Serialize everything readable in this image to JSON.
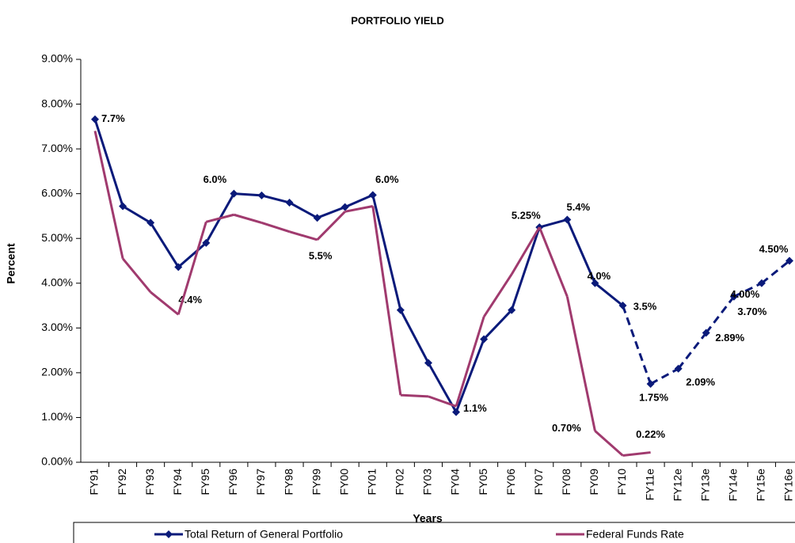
{
  "chart_data": {
    "type": "line",
    "title": "PORTFOLIO YIELD",
    "x_label": "Years",
    "y_label": "Percent",
    "categories": [
      "FY91",
      "FY92",
      "FY93",
      "FY94",
      "FY95",
      "FY96",
      "FY97",
      "FY98",
      "FY99",
      "FY00",
      "FY01",
      "FY02",
      "FY03",
      "FY04",
      "FY05",
      "FY06",
      "FY07",
      "FY08",
      "FY09",
      "FY10",
      "FY11e",
      "FY12e",
      "FY13e",
      "FY14e",
      "FY15e",
      "FY16e"
    ],
    "series": [
      {
        "name": "Total Return of General Portfolio",
        "color": "#0a1a7a",
        "values": [
          7.66,
          5.72,
          5.35,
          4.36,
          4.9,
          6.0,
          5.96,
          5.8,
          5.46,
          5.7,
          5.97,
          3.4,
          2.22,
          1.12,
          2.75,
          3.4,
          5.25,
          5.42,
          4.0,
          3.5,
          1.75,
          2.09,
          2.89,
          3.7,
          4.0,
          4.5
        ],
        "value_labels": [
          "7.7%",
          null,
          null,
          "4.4%",
          null,
          "6.0%",
          null,
          null,
          "5.5%",
          null,
          "6.0%",
          null,
          null,
          "1.1%",
          null,
          null,
          "5.25%",
          "5.4%",
          "4.0%",
          "3.5%",
          "1.75%",
          "2.09%",
          "2.89%",
          "3.70%",
          "4.00%",
          "4.50%"
        ]
      },
      {
        "name": "Federal Funds Rate",
        "color": "#a03a6e",
        "values": [
          7.4,
          4.55,
          3.8,
          3.3,
          5.37,
          5.53,
          5.35,
          5.15,
          4.97,
          5.6,
          5.72,
          1.5,
          1.47,
          1.25,
          3.25,
          4.2,
          5.25,
          3.7,
          0.7,
          0.15,
          0.22,
          null,
          null,
          null,
          null,
          null
        ],
        "value_labels": [
          null,
          null,
          null,
          null,
          null,
          null,
          null,
          null,
          null,
          null,
          null,
          null,
          null,
          null,
          null,
          null,
          null,
          null,
          "0.70%",
          null,
          "0.22%",
          null,
          null,
          null,
          null,
          null
        ]
      }
    ],
    "ylim": [
      0,
      9
    ],
    "yticks": [
      {
        "value": 0,
        "label": "0.00%"
      },
      {
        "value": 1,
        "label": "1.00%"
      },
      {
        "value": 2,
        "label": "2.00%"
      },
      {
        "value": 3,
        "label": "3.00%"
      },
      {
        "value": 4,
        "label": "4.00%"
      },
      {
        "value": 5,
        "label": "5.00%"
      },
      {
        "value": 6,
        "label": "6.00%"
      },
      {
        "value": 7,
        "label": "7.00%"
      },
      {
        "value": 8,
        "label": "8.00%"
      },
      {
        "value": 9,
        "label": "9.00%"
      }
    ],
    "grid": false,
    "legend": "bottom"
  }
}
